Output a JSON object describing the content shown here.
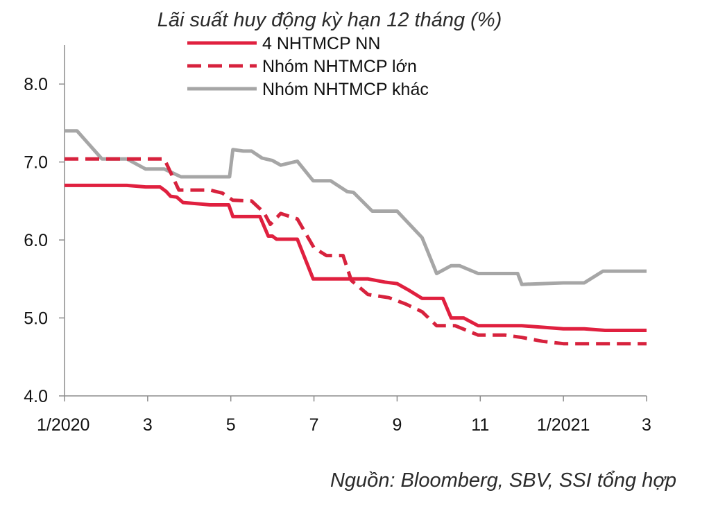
{
  "chart_data": {
    "type": "line",
    "title": "Lãi suất huy động kỳ hạn 12 tháng (%)",
    "source": "Nguồn:  Bloomberg, SBV, SSI tổng hợp",
    "xlabel": "",
    "ylabel": "",
    "ylim": [
      4.0,
      8.5
    ],
    "xlim": [
      0,
      14
    ],
    "y_ticks": [
      {
        "value": 4.0,
        "label": "4.0"
      },
      {
        "value": 5.0,
        "label": "5.0"
      },
      {
        "value": 6.0,
        "label": "6.0"
      },
      {
        "value": 7.0,
        "label": "7.0"
      },
      {
        "value": 8.0,
        "label": "8.0"
      }
    ],
    "x_ticks": [
      {
        "value": 0,
        "label": "1/2020"
      },
      {
        "value": 2,
        "label": "3"
      },
      {
        "value": 4,
        "label": "5"
      },
      {
        "value": 6,
        "label": "7"
      },
      {
        "value": 8,
        "label": "9"
      },
      {
        "value": 10,
        "label": "11"
      },
      {
        "value": 12,
        "label": "1/2021"
      },
      {
        "value": 14,
        "label": "3"
      }
    ],
    "grid": false,
    "legend_position": "top-center",
    "series": [
      {
        "name": "4 NHTMCP NN",
        "color": "#e0203f",
        "style": "solid",
        "points": [
          [
            0,
            6.7
          ],
          [
            1.5,
            6.7
          ],
          [
            1.95,
            6.68
          ],
          [
            2.3,
            6.68
          ],
          [
            2.45,
            6.62
          ],
          [
            2.55,
            6.56
          ],
          [
            2.7,
            6.55
          ],
          [
            2.85,
            6.48
          ],
          [
            3.3,
            6.46
          ],
          [
            3.5,
            6.45
          ],
          [
            3.95,
            6.45
          ],
          [
            4.05,
            6.3
          ],
          [
            4.7,
            6.3
          ],
          [
            4.9,
            6.05
          ],
          [
            5.0,
            6.05
          ],
          [
            5.1,
            6.01
          ],
          [
            5.6,
            6.01
          ],
          [
            5.98,
            5.5
          ],
          [
            6.9,
            5.5
          ],
          [
            7.3,
            5.5
          ],
          [
            7.7,
            5.46
          ],
          [
            8.0,
            5.44
          ],
          [
            8.3,
            5.35
          ],
          [
            8.6,
            5.25
          ],
          [
            9.1,
            5.25
          ],
          [
            9.3,
            5.0
          ],
          [
            9.6,
            5.0
          ],
          [
            9.95,
            4.9
          ],
          [
            10.6,
            4.9
          ],
          [
            11.0,
            4.9
          ],
          [
            11.5,
            4.88
          ],
          [
            12.0,
            4.86
          ],
          [
            12.5,
            4.86
          ],
          [
            13.0,
            4.84
          ],
          [
            13.5,
            4.84
          ],
          [
            14.0,
            4.84
          ]
        ]
      },
      {
        "name": "Nhóm NHTMCP lớn",
        "color": "#d7223d",
        "style": "dashed",
        "points": [
          [
            0,
            7.04
          ],
          [
            2.4,
            7.04
          ],
          [
            2.75,
            6.64
          ],
          [
            3.5,
            6.64
          ],
          [
            3.8,
            6.6
          ],
          [
            4.05,
            6.51
          ],
          [
            4.5,
            6.5
          ],
          [
            4.8,
            6.35
          ],
          [
            4.95,
            6.2
          ],
          [
            5.2,
            6.34
          ],
          [
            5.6,
            6.27
          ],
          [
            6.0,
            5.9
          ],
          [
            6.3,
            5.8
          ],
          [
            6.7,
            5.8
          ],
          [
            6.9,
            5.48
          ],
          [
            7.3,
            5.3
          ],
          [
            7.8,
            5.26
          ],
          [
            8.2,
            5.18
          ],
          [
            8.6,
            5.08
          ],
          [
            8.95,
            4.9
          ],
          [
            9.4,
            4.9
          ],
          [
            9.95,
            4.78
          ],
          [
            10.6,
            4.78
          ],
          [
            11.0,
            4.75
          ],
          [
            11.5,
            4.7
          ],
          [
            12.0,
            4.67
          ],
          [
            12.5,
            4.67
          ],
          [
            13.0,
            4.67
          ],
          [
            13.5,
            4.67
          ],
          [
            14.0,
            4.67
          ]
        ]
      },
      {
        "name": "Nhóm NHTMCP khác",
        "color": "#a6a6a6",
        "style": "solid",
        "points": [
          [
            0,
            7.4
          ],
          [
            0.3,
            7.4
          ],
          [
            0.9,
            7.04
          ],
          [
            1.5,
            7.04
          ],
          [
            1.95,
            6.91
          ],
          [
            2.4,
            6.91
          ],
          [
            2.8,
            6.81
          ],
          [
            3.5,
            6.81
          ],
          [
            3.97,
            6.81
          ],
          [
            4.05,
            7.16
          ],
          [
            4.3,
            7.14
          ],
          [
            4.5,
            7.14
          ],
          [
            4.75,
            7.05
          ],
          [
            5.0,
            7.02
          ],
          [
            5.2,
            6.96
          ],
          [
            5.6,
            7.01
          ],
          [
            5.98,
            6.76
          ],
          [
            6.4,
            6.76
          ],
          [
            6.8,
            6.62
          ],
          [
            6.95,
            6.61
          ],
          [
            7.4,
            6.37
          ],
          [
            8.0,
            6.37
          ],
          [
            8.6,
            6.03
          ],
          [
            8.95,
            5.57
          ],
          [
            9.3,
            5.67
          ],
          [
            9.5,
            5.67
          ],
          [
            9.95,
            5.57
          ],
          [
            10.6,
            5.57
          ],
          [
            10.9,
            5.57
          ],
          [
            11.0,
            5.43
          ],
          [
            11.5,
            5.44
          ],
          [
            12.0,
            5.45
          ],
          [
            12.5,
            5.45
          ],
          [
            12.95,
            5.6
          ],
          [
            13.5,
            5.6
          ],
          [
            14.0,
            5.6
          ]
        ]
      }
    ]
  }
}
